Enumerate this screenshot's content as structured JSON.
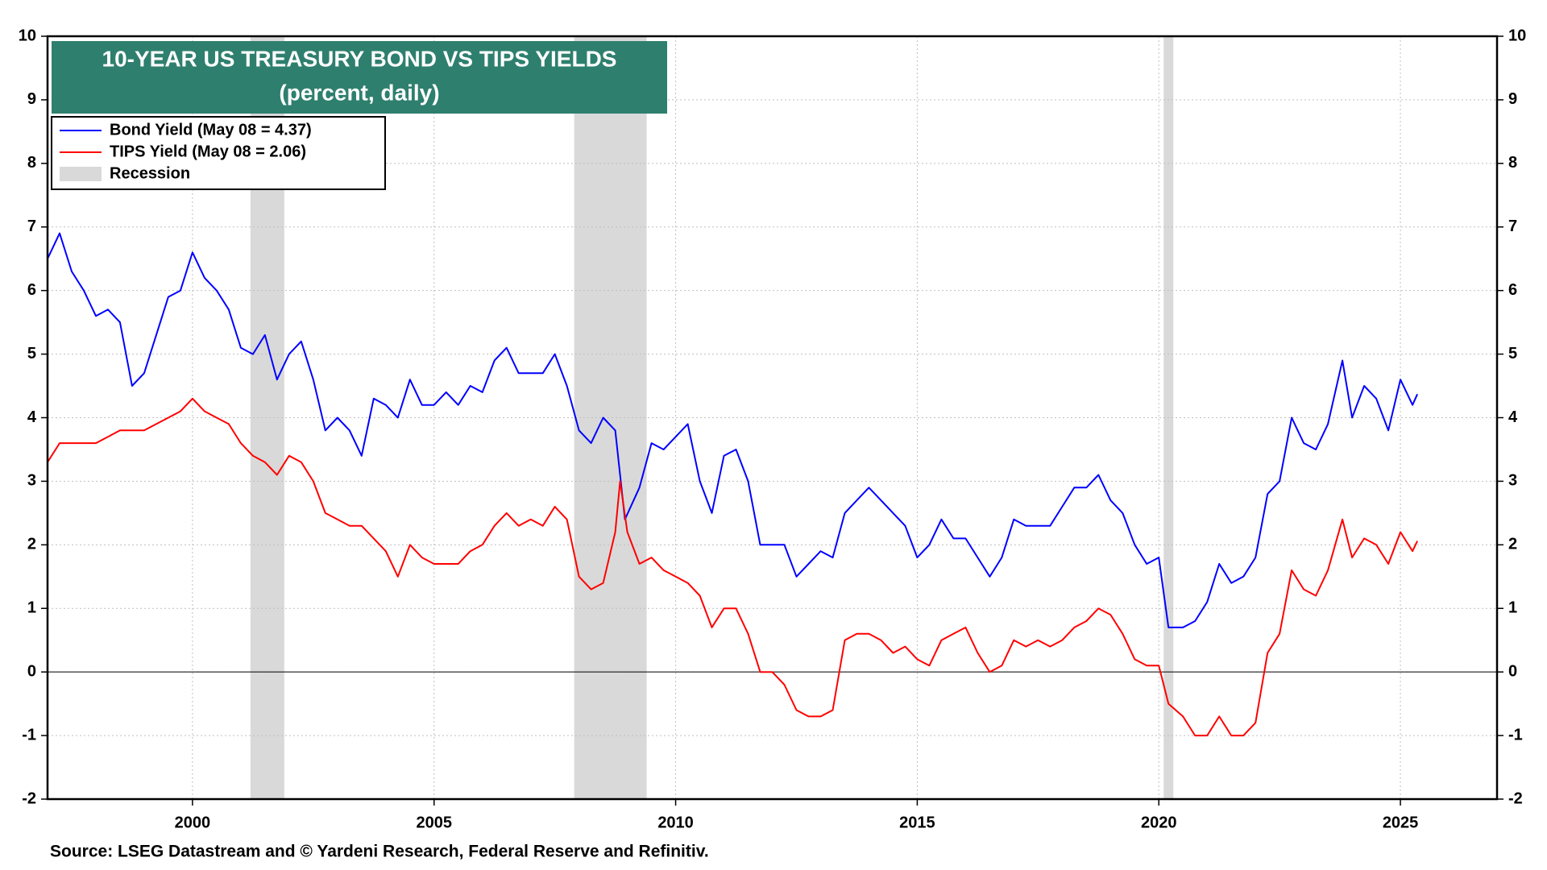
{
  "chart_data": {
    "type": "line",
    "title": "10-YEAR US TREASURY BOND VS TIPS YIELDS",
    "subtitle": "(percent, daily)",
    "source": "Source: LSEG Datastream and © Yardeni Research, Federal Reserve and Refinitiv.",
    "xlim": [
      1997.0,
      2027.0
    ],
    "xticks": [
      2000,
      2005,
      2010,
      2015,
      2020,
      2025
    ],
    "ylim": [
      -2,
      10
    ],
    "yticks": [
      -2,
      -1,
      0,
      1,
      2,
      3,
      4,
      5,
      6,
      7,
      8,
      9,
      10
    ],
    "y2lim": [
      -2,
      10
    ],
    "y2ticks": [
      -2,
      -1,
      0,
      1,
      2,
      3,
      4,
      5,
      6,
      7,
      8,
      9,
      10
    ],
    "grid": true,
    "legend": "upper left",
    "recessions": {
      "name": "Recession",
      "color": "#d9d9d9",
      "spans": [
        [
          2001.2,
          2001.9
        ],
        [
          2007.9,
          2009.4
        ],
        [
          2020.1,
          2020.3
        ]
      ]
    },
    "series": [
      {
        "name": "Bond Yield (May 08 = 4.37)",
        "color": "#0000ff",
        "x": [
          1997.0,
          1997.25,
          1997.5,
          1997.75,
          1998.0,
          1998.25,
          1998.5,
          1998.75,
          1999.0,
          1999.25,
          1999.5,
          1999.75,
          2000.0,
          2000.25,
          2000.5,
          2000.75,
          2001.0,
          2001.25,
          2001.5,
          2001.75,
          2002.0,
          2002.25,
          2002.5,
          2002.75,
          2003.0,
          2003.25,
          2003.5,
          2003.75,
          2004.0,
          2004.25,
          2004.5,
          2004.75,
          2005.0,
          2005.25,
          2005.5,
          2005.75,
          2006.0,
          2006.25,
          2006.5,
          2006.75,
          2007.0,
          2007.25,
          2007.5,
          2007.75,
          2008.0,
          2008.25,
          2008.5,
          2008.75,
          2008.95,
          2009.25,
          2009.5,
          2009.75,
          2010.0,
          2010.25,
          2010.5,
          2010.75,
          2011.0,
          2011.25,
          2011.5,
          2011.75,
          2012.0,
          2012.25,
          2012.5,
          2012.75,
          2013.0,
          2013.25,
          2013.5,
          2013.75,
          2014.0,
          2014.25,
          2014.5,
          2014.75,
          2015.0,
          2015.25,
          2015.5,
          2015.75,
          2016.0,
          2016.25,
          2016.5,
          2016.75,
          2017.0,
          2017.25,
          2017.5,
          2017.75,
          2018.0,
          2018.25,
          2018.5,
          2018.75,
          2019.0,
          2019.25,
          2019.5,
          2019.75,
          2020.0,
          2020.2,
          2020.5,
          2020.75,
          2021.0,
          2021.25,
          2021.5,
          2021.75,
          2022.0,
          2022.25,
          2022.5,
          2022.75,
          2023.0,
          2023.25,
          2023.5,
          2023.8,
          2024.0,
          2024.25,
          2024.5,
          2024.75,
          2025.0,
          2025.25,
          2025.35
        ],
        "values": [
          6.5,
          6.9,
          6.3,
          6.0,
          5.6,
          5.7,
          5.5,
          4.5,
          4.7,
          5.3,
          5.9,
          6.0,
          6.6,
          6.2,
          6.0,
          5.7,
          5.1,
          5.0,
          5.3,
          4.6,
          5.0,
          5.2,
          4.6,
          3.8,
          4.0,
          3.8,
          3.4,
          4.3,
          4.2,
          4.0,
          4.6,
          4.2,
          4.2,
          4.4,
          4.2,
          4.5,
          4.4,
          4.9,
          5.1,
          4.7,
          4.7,
          4.7,
          5.0,
          4.5,
          3.8,
          3.6,
          4.0,
          3.8,
          2.4,
          2.9,
          3.6,
          3.5,
          3.7,
          3.9,
          3.0,
          2.5,
          3.4,
          3.5,
          3.0,
          2.0,
          2.0,
          2.0,
          1.5,
          1.7,
          1.9,
          1.8,
          2.5,
          2.7,
          2.9,
          2.7,
          2.5,
          2.3,
          1.8,
          2.0,
          2.4,
          2.1,
          2.1,
          1.8,
          1.5,
          1.8,
          2.4,
          2.3,
          2.3,
          2.3,
          2.6,
          2.9,
          2.9,
          3.1,
          2.7,
          2.5,
          2.0,
          1.7,
          1.8,
          0.7,
          0.7,
          0.8,
          1.1,
          1.7,
          1.4,
          1.5,
          1.8,
          2.8,
          3.0,
          4.0,
          3.6,
          3.5,
          3.9,
          4.9,
          4.0,
          4.5,
          4.3,
          3.8,
          4.6,
          4.2,
          4.37
        ]
      },
      {
        "name": "TIPS Yield (May 08 = 2.06)",
        "color": "#ff0000",
        "x": [
          1997.0,
          1997.25,
          1997.5,
          1997.75,
          1998.0,
          1998.25,
          1998.5,
          1998.75,
          1999.0,
          1999.25,
          1999.5,
          1999.75,
          2000.0,
          2000.25,
          2000.5,
          2000.75,
          2001.0,
          2001.25,
          2001.5,
          2001.75,
          2002.0,
          2002.25,
          2002.5,
          2002.75,
          2003.0,
          2003.25,
          2003.5,
          2003.75,
          2004.0,
          2004.25,
          2004.5,
          2004.75,
          2005.0,
          2005.25,
          2005.5,
          2005.75,
          2006.0,
          2006.25,
          2006.5,
          2006.75,
          2007.0,
          2007.25,
          2007.5,
          2007.75,
          2008.0,
          2008.25,
          2008.5,
          2008.75,
          2008.85,
          2009.0,
          2009.25,
          2009.5,
          2009.75,
          2010.0,
          2010.25,
          2010.5,
          2010.75,
          2011.0,
          2011.25,
          2011.5,
          2011.75,
          2012.0,
          2012.25,
          2012.5,
          2012.75,
          2013.0,
          2013.25,
          2013.5,
          2013.75,
          2014.0,
          2014.25,
          2014.5,
          2014.75,
          2015.0,
          2015.25,
          2015.5,
          2015.75,
          2016.0,
          2016.25,
          2016.5,
          2016.75,
          2017.0,
          2017.25,
          2017.5,
          2017.75,
          2018.0,
          2018.25,
          2018.5,
          2018.75,
          2019.0,
          2019.25,
          2019.5,
          2019.75,
          2020.0,
          2020.2,
          2020.5,
          2020.75,
          2021.0,
          2021.25,
          2021.5,
          2021.75,
          2022.0,
          2022.25,
          2022.5,
          2022.75,
          2023.0,
          2023.25,
          2023.5,
          2023.8,
          2024.0,
          2024.25,
          2024.5,
          2024.75,
          2025.0,
          2025.25,
          2025.35
        ],
        "values": [
          3.3,
          3.6,
          3.6,
          3.6,
          3.6,
          3.7,
          3.8,
          3.8,
          3.8,
          3.9,
          4.0,
          4.1,
          4.3,
          4.1,
          4.0,
          3.9,
          3.6,
          3.4,
          3.3,
          3.1,
          3.4,
          3.3,
          3.0,
          2.5,
          2.4,
          2.3,
          2.3,
          2.1,
          1.9,
          1.5,
          2.0,
          1.8,
          1.7,
          1.7,
          1.7,
          1.9,
          2.0,
          2.3,
          2.5,
          2.3,
          2.4,
          2.3,
          2.6,
          2.4,
          1.5,
          1.3,
          1.4,
          2.2,
          3.0,
          2.2,
          1.7,
          1.8,
          1.6,
          1.5,
          1.4,
          1.2,
          0.7,
          1.0,
          1.0,
          0.6,
          0.0,
          0.0,
          -0.2,
          -0.6,
          -0.7,
          -0.7,
          -0.6,
          0.5,
          0.6,
          0.6,
          0.5,
          0.3,
          0.4,
          0.2,
          0.1,
          0.5,
          0.6,
          0.7,
          0.3,
          0.0,
          0.1,
          0.5,
          0.4,
          0.5,
          0.4,
          0.5,
          0.7,
          0.8,
          1.0,
          0.9,
          0.6,
          0.2,
          0.1,
          0.1,
          -0.5,
          -0.7,
          -1.0,
          -1.0,
          -0.7,
          -1.0,
          -1.0,
          -0.8,
          0.3,
          0.6,
          1.6,
          1.3,
          1.2,
          1.6,
          2.4,
          1.8,
          2.1,
          2.0,
          1.7,
          2.2,
          1.9,
          2.06
        ]
      }
    ]
  }
}
